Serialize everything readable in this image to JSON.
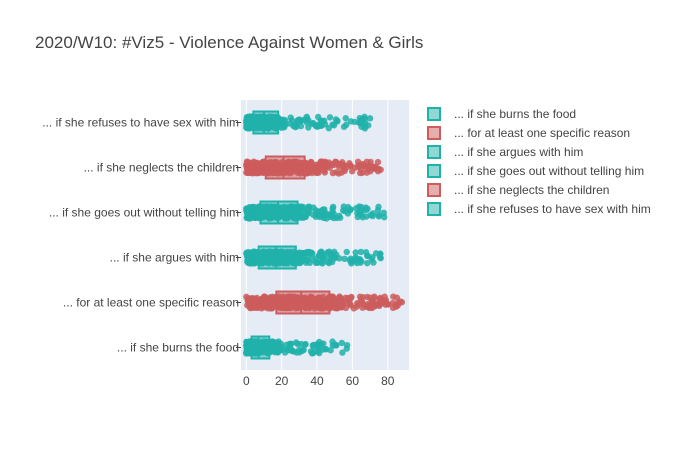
{
  "chart_data": {
    "type": "box",
    "orientation": "horizontal",
    "title": "2020/W10: #Viz5 - Violence Against Women & Girls",
    "xlabel": "",
    "ylabel": "",
    "xlim": [
      -3,
      92
    ],
    "xticks": [
      0,
      20,
      40,
      60,
      80
    ],
    "grid": true,
    "legend_position": "right",
    "colors": {
      "teal": "#20b2aa",
      "red": "#cd5c5c",
      "plot_bg": "#e5ecf6"
    },
    "series": [
      {
        "name": "... if she burns the food",
        "color": "#20b2aa",
        "min": 0,
        "q1": 3,
        "median": 7,
        "q3": 13,
        "max": 57
      },
      {
        "name": "... for at least one specific reason",
        "color": "#cd5c5c",
        "min": 0,
        "q1": 17,
        "median": 31,
        "q3": 47,
        "max": 88
      },
      {
        "name": "... if she argues with him",
        "color": "#20b2aa",
        "min": 0,
        "q1": 7,
        "median": 17,
        "q3": 28,
        "max": 76
      },
      {
        "name": "... if she goes out without telling him",
        "color": "#20b2aa",
        "min": 0,
        "q1": 8,
        "median": 18,
        "q3": 29,
        "max": 78
      },
      {
        "name": "... if she neglects the children",
        "color": "#cd5c5c",
        "min": 0,
        "q1": 11,
        "median": 21,
        "q3": 33,
        "max": 76
      },
      {
        "name": "... if she refuses to have sex with him",
        "color": "#20b2aa",
        "min": 0,
        "q1": 4,
        "median": 10,
        "q3": 18,
        "max": 70
      }
    ]
  }
}
